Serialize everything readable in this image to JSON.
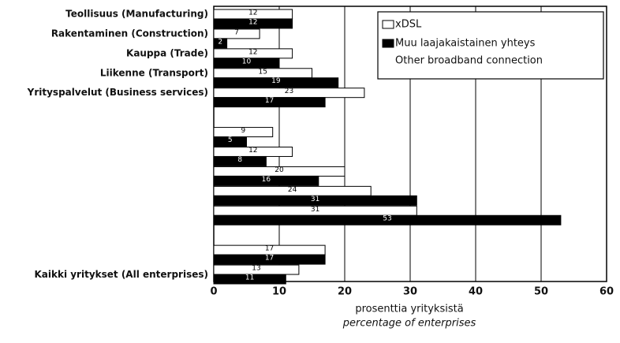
{
  "chart_data": {
    "type": "bar",
    "orientation": "horizontal",
    "categories": [
      "Teollisuus (Manufacturing)",
      "Rakentaminen (Construction)",
      "Kauppa (Trade)",
      "Liikenne (Transport)",
      "Yrityspalvelut (Business services)",
      null,
      null,
      null,
      null,
      null,
      null,
      null,
      "Kaikki yritykset (All enterprises)"
    ],
    "series": [
      {
        "name": "xDSL",
        "color": "#ffffff",
        "values": [
          12,
          7,
          12,
          15,
          23,
          null,
          9,
          12,
          20,
          24,
          31,
          17,
          13
        ]
      },
      {
        "name": "Muu laajakaistainen yhteys",
        "name_en": "Other broadband connection",
        "color": "#000000",
        "values": [
          12,
          2,
          10,
          19,
          17,
          null,
          5,
          8,
          16,
          31,
          53,
          17,
          11
        ]
      }
    ],
    "xlabel": "prosenttia yrityksistä",
    "xlabel_en": "percentage of enterprises",
    "xlim": [
      0,
      60
    ],
    "xticks": [
      0,
      10,
      20,
      30,
      40,
      50,
      60
    ],
    "grid": true,
    "legend": "upper right"
  }
}
